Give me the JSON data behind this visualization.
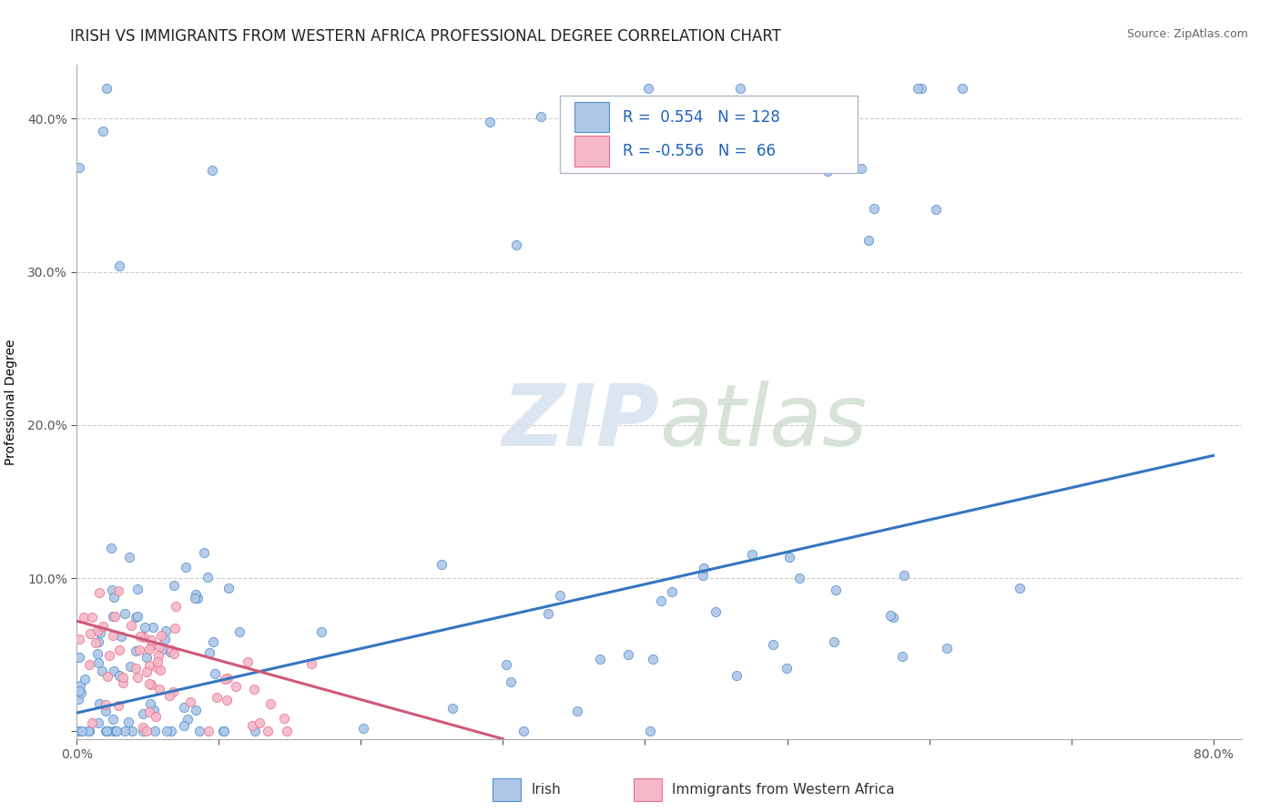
{
  "title": "IRISH VS IMMIGRANTS FROM WESTERN AFRICA PROFESSIONAL DEGREE CORRELATION CHART",
  "source": "Source: ZipAtlas.com",
  "ylabel": "Professional Degree",
  "xlim": [
    0.0,
    0.82
  ],
  "ylim": [
    -0.005,
    0.435
  ],
  "xticks": [
    0.0,
    0.1,
    0.2,
    0.3,
    0.4,
    0.5,
    0.6,
    0.7,
    0.8
  ],
  "xticklabels": [
    "0.0%",
    "",
    "",
    "",
    "",
    "",
    "",
    "",
    "80.0%"
  ],
  "yticks": [
    0.0,
    0.1,
    0.2,
    0.3,
    0.4
  ],
  "yticklabels": [
    "",
    "10.0%",
    "20.0%",
    "30.0%",
    "40.0%"
  ],
  "irish_R": 0.554,
  "irish_N": 128,
  "wa_R": -0.556,
  "wa_N": 66,
  "irish_color": "#aec6e8",
  "wa_color": "#f4b8c8",
  "irish_edge_color": "#5090c8",
  "wa_edge_color": "#e87090",
  "irish_line_color": "#3575c0",
  "wa_line_color": "#d05878",
  "legend_text_color": "#2060c0",
  "watermark_color": "#d8e4f0",
  "background_color": "#ffffff",
  "grid_color": "#cccccc",
  "title_fontsize": 12,
  "axis_label_fontsize": 10,
  "tick_fontsize": 10,
  "legend_fontsize": 12,
  "source_fontsize": 9
}
